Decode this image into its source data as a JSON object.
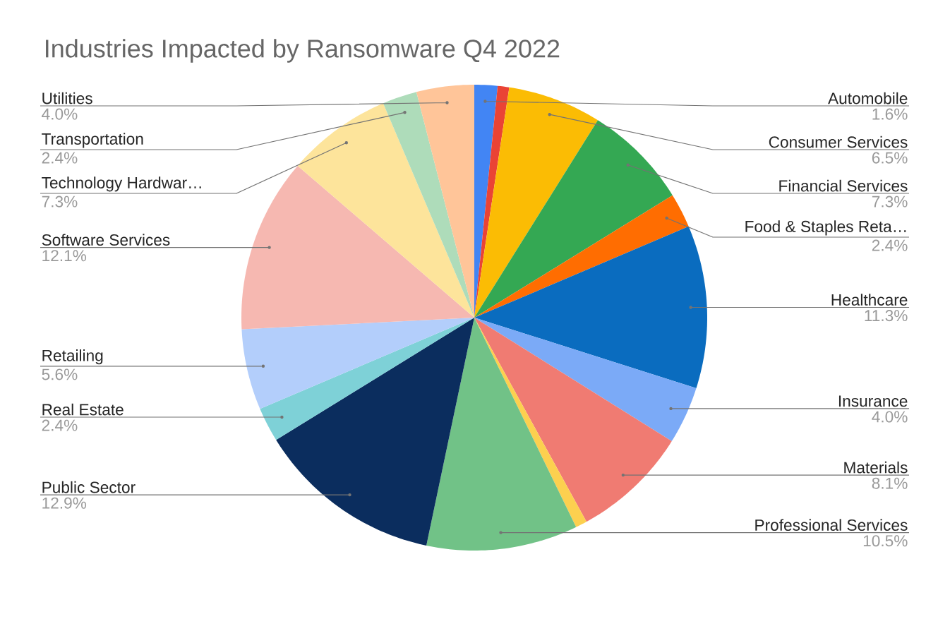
{
  "chart_data": {
    "type": "pie",
    "title": "Industries Impacted by Ransomware Q4 2022",
    "categories": [
      "Automobile",
      null,
      "Consumer Services",
      "Financial Services",
      "Food & Staples Reta…",
      "Healthcare",
      "Insurance",
      "Materials",
      null,
      "Professional Services",
      "Public Sector",
      "Real Estate",
      "Retailing",
      "Software Services",
      "Technology Hardwar…",
      "Transportation",
      "Utilities"
    ],
    "values": [
      1.6,
      0.8,
      6.5,
      7.3,
      2.4,
      11.3,
      4.0,
      8.1,
      0.8,
      10.5,
      12.9,
      2.4,
      5.6,
      12.1,
      7.3,
      2.4,
      4.0
    ],
    "value_labels": [
      "1.6%",
      null,
      "6.5%",
      "7.3%",
      "2.4%",
      "11.3%",
      "4.0%",
      "8.1%",
      null,
      "10.5%",
      "12.9%",
      "2.4%",
      "5.6%",
      "12.1%",
      "7.3%",
      "2.4%",
      "4.0%"
    ],
    "colors": [
      "#4285f4",
      "#ea4335",
      "#fbbc04",
      "#34a853",
      "#ff6d01",
      "#0a6cbf",
      "#7baaf7",
      "#f07b72",
      "#fcd04f",
      "#71c287",
      "#0b2d5e",
      "#7ed1d7",
      "#b3cefb",
      "#f6b8b1",
      "#fde49b",
      "#aedcba",
      "#ffc599"
    ]
  }
}
